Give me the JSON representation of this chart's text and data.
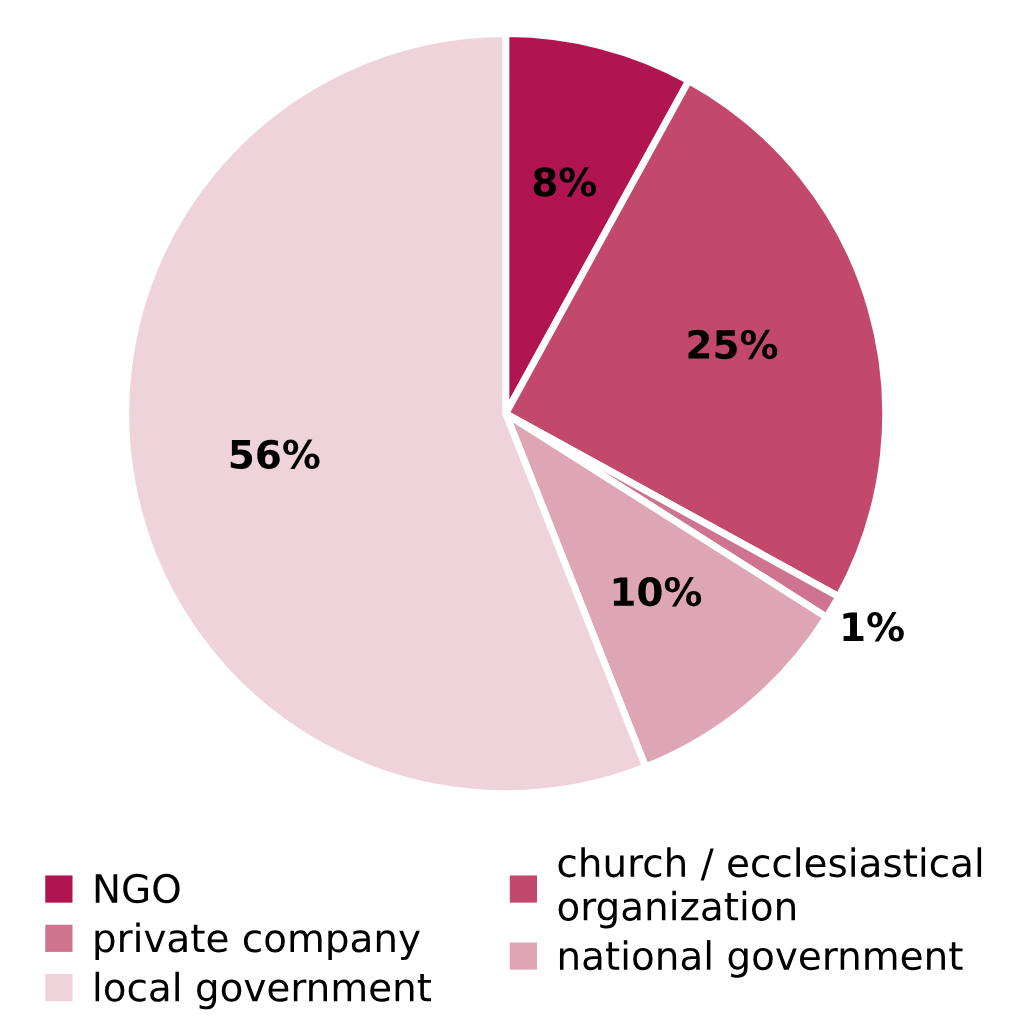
{
  "chart_data": {
    "type": "pie",
    "categories": [
      "NGO",
      "church / ecclesiastical\norganization",
      "private company",
      "national government",
      "local government"
    ],
    "values": [
      8,
      25,
      1,
      10,
      56
    ],
    "value_labels": [
      "8%",
      "25%",
      "1%",
      "10%",
      "56%"
    ],
    "colors": [
      "#b01552",
      "#c2496b",
      "#cf748e",
      "#dea6b5",
      "#efd3da"
    ],
    "legend": "bottom"
  }
}
